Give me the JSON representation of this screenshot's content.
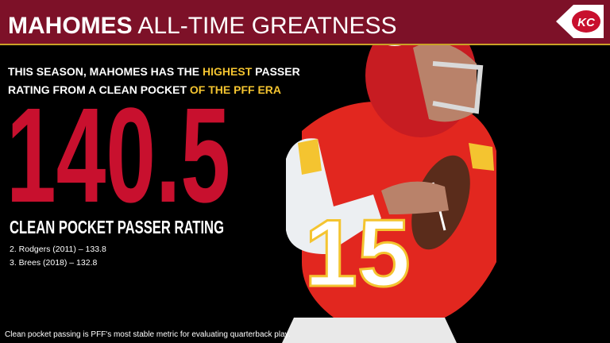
{
  "header": {
    "title_bold": "MAHOMES",
    "title_rest": "ALL-TIME GREATNESS",
    "logo": "KC"
  },
  "intro": {
    "part1": "THIS SEASON, MAHOMES HAS THE ",
    "highlight1": "HIGHEST",
    "part2": " PASSER",
    "part3": "RATING FROM A CLEAN POCKET ",
    "highlight2": "OF THE PFF ERA"
  },
  "stat": {
    "value": "140.5",
    "label": "CLEAN POCKET PASSER RATING"
  },
  "ranking": [
    "2. Rodgers (2011) – 133.8",
    "3. Brees (2018) – 132.8"
  ],
  "footnote": "Clean pocket passing is PFF's most stable metric for evaluating quarterback play.",
  "jersey_number": "15"
}
